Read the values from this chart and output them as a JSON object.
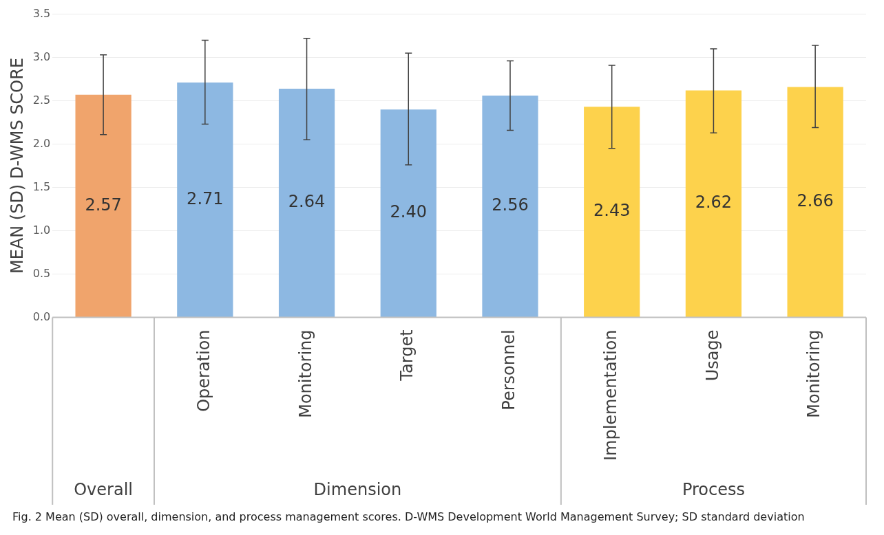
{
  "chart_data": {
    "type": "bar",
    "title": "Fig. 2  Mean (SD) overall, dimension, and process management scores. D-WMS Development World Management Survey; SD standard deviation",
    "ylabel": "MEAN (SD) D-WMS SCORE",
    "categories": [
      null,
      "Operation",
      "Monitoring",
      "Target",
      "Personnel",
      "Implementation",
      "Usage",
      "Monitoring"
    ],
    "values": [
      2.57,
      2.71,
      2.64,
      2.4,
      2.56,
      2.43,
      2.62,
      2.66
    ],
    "colors": [
      "#f0a46c",
      "#8db8e2",
      "#8db8e2",
      "#8db8e2",
      "#8db8e2",
      "#fdd24c",
      "#fdd24c",
      "#fdd24c"
    ],
    "errors": [
      [
        2.11,
        3.03
      ],
      [
        2.23,
        3.2
      ],
      [
        2.05,
        3.22
      ],
      [
        1.76,
        3.05
      ],
      [
        2.16,
        2.96
      ],
      [
        1.95,
        2.91
      ],
      [
        2.13,
        3.1
      ],
      [
        2.19,
        3.14
      ]
    ],
    "value_labels": [
      "2.57",
      "2.71",
      "2.64",
      "2.40",
      "2.56",
      "2.43",
      "2.62",
      "2.66"
    ],
    "annotations": [
      "Overall",
      "Dimension",
      "Process"
    ],
    "ylim": [
      0,
      3.5
    ],
    "yticks": [
      {
        "value": 0,
        "label": "0.0"
      },
      0.5,
      {
        "value": 1,
        "label": "1.0"
      },
      1.5,
      {
        "value": 2,
        "label": "2.0"
      },
      2.5,
      {
        "value": 3,
        "label": "3.0"
      },
      3.5
    ],
    "grid": "y"
  }
}
